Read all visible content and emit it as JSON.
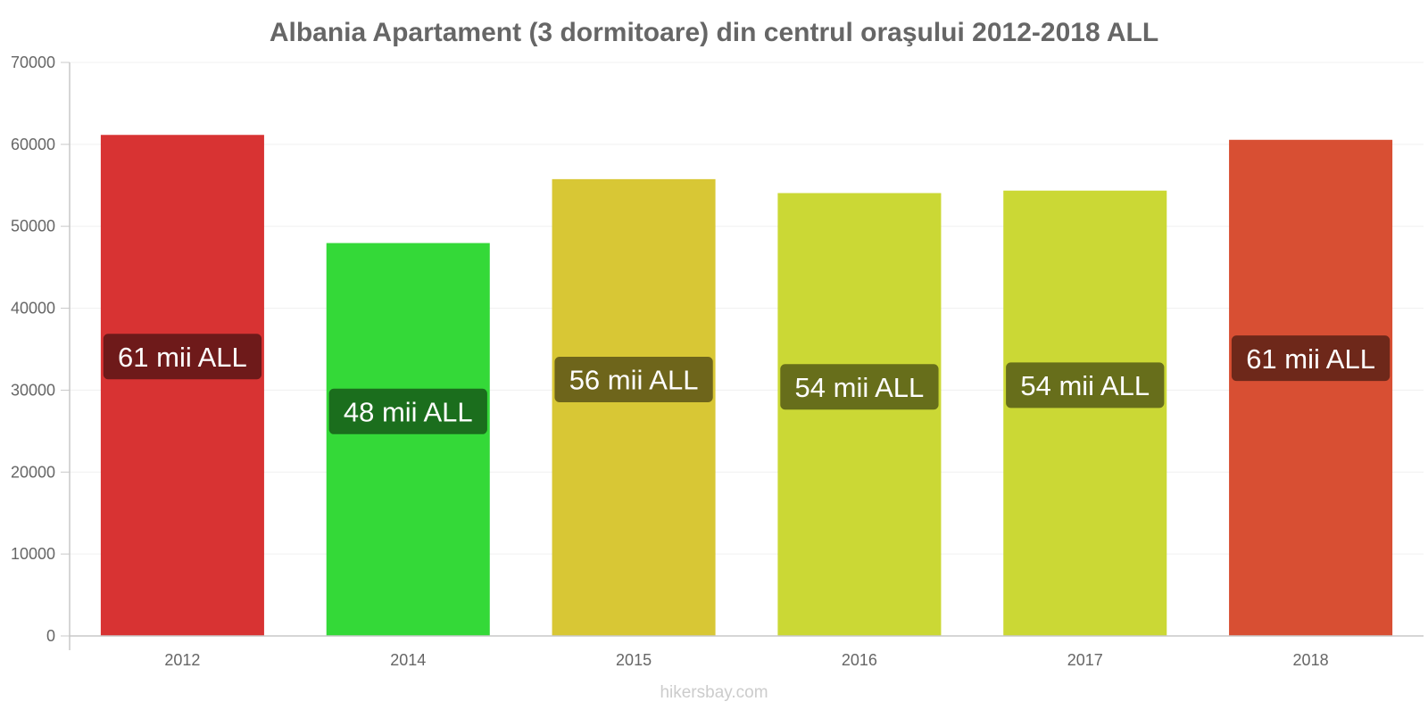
{
  "chart_data": {
    "type": "bar",
    "title": "Albania Apartament (3 dormitoare) din centrul oraşului 2012-2018 ALL",
    "xlabel": "",
    "ylabel": "",
    "ylim": [
      0,
      70000
    ],
    "yticks": [
      0,
      10000,
      20000,
      30000,
      40000,
      50000,
      60000,
      70000
    ],
    "grid": true,
    "categories": [
      "2012",
      "2014",
      "2015",
      "2016",
      "2017",
      "2018"
    ],
    "values": [
      61100,
      47900,
      55700,
      54000,
      54300,
      60500
    ],
    "data_labels": [
      "61 mii ALL",
      "48 mii ALL",
      "56 mii ALL",
      "54 mii ALL",
      "54 mii ALL",
      "61 mii ALL"
    ],
    "bar_colors": [
      "#dc3434",
      "#35dd39",
      "#dccb36",
      "#cfdc36",
      "#cfdc36",
      "#dc5134"
    ],
    "label_bg_colors": [
      "#6e1a1a",
      "#1b6e1d",
      "#6e651b",
      "#676e1b",
      "#676e1b",
      "#6e281a"
    ],
    "label_values": [
      34100,
      27400,
      31300,
      30400,
      30600,
      33900
    ]
  },
  "watermark": "hikersbay.com"
}
